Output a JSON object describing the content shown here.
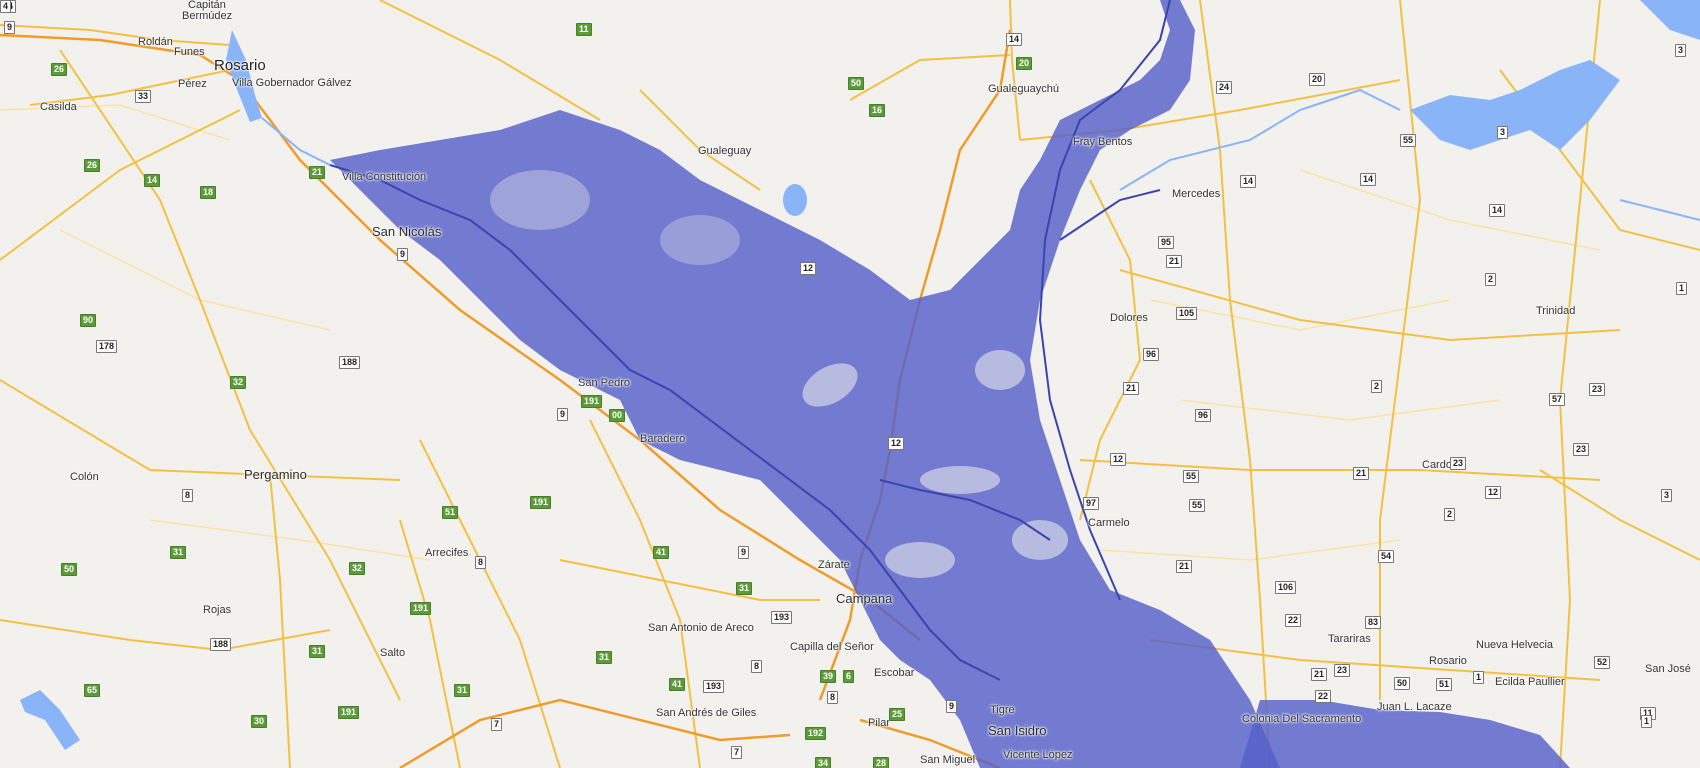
{
  "map": {
    "colors": {
      "land": "#f2f1ee",
      "road_major": "#f4c043",
      "road_highway": "#f09c2a",
      "water": "#8ab4f8",
      "flood_overlay": "#5560c8",
      "river_line": "#3a44b0"
    },
    "cities": [
      {
        "name": "Capitán",
        "size": "small"
      },
      {
        "name": "Bermúdez",
        "size": "small"
      },
      {
        "name": "Roldán",
        "size": "small"
      },
      {
        "name": "Funes",
        "size": "small"
      },
      {
        "name": "Rosario",
        "size": "big"
      },
      {
        "name": "Pérez",
        "size": "small"
      },
      {
        "name": "Villa Gobernador Gálvez",
        "size": "small"
      },
      {
        "name": "Casilda",
        "size": "small"
      },
      {
        "name": "Villa Constitución",
        "size": "small"
      },
      {
        "name": "San Nicolás",
        "size": "med"
      },
      {
        "name": "San Pedro",
        "size": "small"
      },
      {
        "name": "Baradero",
        "size": "small"
      },
      {
        "name": "Colón",
        "size": "small"
      },
      {
        "name": "Pergamino",
        "size": "med"
      },
      {
        "name": "Arrecifes",
        "size": "small"
      },
      {
        "name": "Rojas",
        "size": "small"
      },
      {
        "name": "Salto",
        "size": "small"
      },
      {
        "name": "San Antonio de Areco",
        "size": "small"
      },
      {
        "name": "Zárate",
        "size": "small"
      },
      {
        "name": "Campana",
        "size": "med"
      },
      {
        "name": "Capilla del Señor",
        "size": "small"
      },
      {
        "name": "Escobar",
        "size": "small"
      },
      {
        "name": "San Andrés de Giles",
        "size": "small"
      },
      {
        "name": "Pilar",
        "size": "small"
      },
      {
        "name": "Tigre",
        "size": "small"
      },
      {
        "name": "San Isidro",
        "size": "med"
      },
      {
        "name": "San Miguel",
        "size": "small"
      },
      {
        "name": "Vicente López",
        "size": "small"
      },
      {
        "name": "Gualeguay",
        "size": "small"
      },
      {
        "name": "Gualeguaychú",
        "size": "small"
      },
      {
        "name": "Fray Bentos",
        "size": "small"
      },
      {
        "name": "Mercedes",
        "size": "small"
      },
      {
        "name": "Dolores",
        "size": "small"
      },
      {
        "name": "Carmelo",
        "size": "small"
      },
      {
        "name": "Cardona",
        "size": "small"
      },
      {
        "name": "Trinidad",
        "size": "small"
      },
      {
        "name": "Tarariras",
        "size": "small"
      },
      {
        "name": "Rosario",
        "size": "small"
      },
      {
        "name": "Nueva Helvecia",
        "size": "small"
      },
      {
        "name": "Colonia Del Sacramento",
        "size": "small"
      },
      {
        "name": "Juan L. Lacaze",
        "size": "small"
      },
      {
        "name": "Ecilda Paullier",
        "size": "small"
      },
      {
        "name": "San José",
        "size": "small"
      }
    ],
    "shields": [
      {
        "label": "9",
        "type": "white"
      },
      {
        "label": "11",
        "type": "green"
      },
      {
        "label": "26",
        "type": "green"
      },
      {
        "label": "33",
        "type": "white"
      },
      {
        "label": "26",
        "type": "green"
      },
      {
        "label": "14",
        "type": "green"
      },
      {
        "label": "18",
        "type": "green"
      },
      {
        "label": "21",
        "type": "green"
      },
      {
        "label": "9",
        "type": "white"
      },
      {
        "label": "90",
        "type": "green"
      },
      {
        "label": "178",
        "type": "white"
      },
      {
        "label": "188",
        "type": "white"
      },
      {
        "label": "32",
        "type": "green"
      },
      {
        "label": "191",
        "type": "green"
      },
      {
        "label": "9",
        "type": "white"
      },
      {
        "label": "00",
        "type": "green"
      },
      {
        "label": "8",
        "type": "white"
      },
      {
        "label": "51",
        "type": "green"
      },
      {
        "label": "191",
        "type": "green"
      },
      {
        "label": "50",
        "type": "green"
      },
      {
        "label": "31",
        "type": "green"
      },
      {
        "label": "32",
        "type": "green"
      },
      {
        "label": "8",
        "type": "white"
      },
      {
        "label": "41",
        "type": "green"
      },
      {
        "label": "9",
        "type": "white"
      },
      {
        "label": "31",
        "type": "green"
      },
      {
        "label": "193",
        "type": "white"
      },
      {
        "label": "191",
        "type": "green"
      },
      {
        "label": "188",
        "type": "white"
      },
      {
        "label": "31",
        "type": "green"
      },
      {
        "label": "65",
        "type": "green"
      },
      {
        "label": "30",
        "type": "green"
      },
      {
        "label": "31",
        "type": "green"
      },
      {
        "label": "191",
        "type": "green"
      },
      {
        "label": "7",
        "type": "white"
      },
      {
        "label": "31",
        "type": "green"
      },
      {
        "label": "8",
        "type": "white"
      },
      {
        "label": "41",
        "type": "green"
      },
      {
        "label": "193",
        "type": "white"
      },
      {
        "label": "39",
        "type": "green"
      },
      {
        "label": "6",
        "type": "green"
      },
      {
        "label": "8",
        "type": "white"
      },
      {
        "label": "25",
        "type": "green"
      },
      {
        "label": "9",
        "type": "white"
      },
      {
        "label": "7",
        "type": "white"
      },
      {
        "label": "192",
        "type": "green"
      },
      {
        "label": "34",
        "type": "green"
      },
      {
        "label": "28",
        "type": "green"
      },
      {
        "label": "14",
        "type": "white"
      },
      {
        "label": "20",
        "type": "green"
      },
      {
        "label": "50",
        "type": "green"
      },
      {
        "label": "16",
        "type": "green"
      },
      {
        "label": "12",
        "type": "white"
      },
      {
        "label": "12",
        "type": "white"
      },
      {
        "label": "24",
        "type": "white"
      },
      {
        "label": "20",
        "type": "white"
      },
      {
        "label": "55",
        "type": "white"
      },
      {
        "label": "3",
        "type": "white"
      },
      {
        "label": "14",
        "type": "white"
      },
      {
        "label": "14",
        "type": "white"
      },
      {
        "label": "14",
        "type": "white"
      },
      {
        "label": "95",
        "type": "white"
      },
      {
        "label": "21",
        "type": "white"
      },
      {
        "label": "2",
        "type": "white"
      },
      {
        "label": "105",
        "type": "white"
      },
      {
        "label": "96",
        "type": "white"
      },
      {
        "label": "21",
        "type": "white"
      },
      {
        "label": "96",
        "type": "white"
      },
      {
        "label": "12",
        "type": "white"
      },
      {
        "label": "55",
        "type": "white"
      },
      {
        "label": "97",
        "type": "white"
      },
      {
        "label": "21",
        "type": "white"
      },
      {
        "label": "55",
        "type": "white"
      },
      {
        "label": "2",
        "type": "white"
      },
      {
        "label": "57",
        "type": "white"
      },
      {
        "label": "23",
        "type": "white"
      },
      {
        "label": "23",
        "type": "white"
      },
      {
        "label": "23",
        "type": "white"
      },
      {
        "label": "12",
        "type": "white"
      },
      {
        "label": "3",
        "type": "white"
      },
      {
        "label": "2",
        "type": "white"
      },
      {
        "label": "54",
        "type": "white"
      },
      {
        "label": "21",
        "type": "white"
      },
      {
        "label": "106",
        "type": "white"
      },
      {
        "label": "22",
        "type": "white"
      },
      {
        "label": "83",
        "type": "white"
      },
      {
        "label": "21",
        "type": "white"
      },
      {
        "label": "23",
        "type": "white"
      },
      {
        "label": "50",
        "type": "white"
      },
      {
        "label": "22",
        "type": "white"
      },
      {
        "label": "1",
        "type": "white"
      },
      {
        "label": "51",
        "type": "white"
      },
      {
        "label": "52",
        "type": "white"
      },
      {
        "label": "11",
        "type": "white"
      },
      {
        "label": "1",
        "type": "white"
      },
      {
        "label": "1",
        "type": "white"
      },
      {
        "label": "3",
        "type": "white"
      },
      {
        "label": "14",
        "type": "white"
      },
      {
        "label": "4",
        "type": "white"
      }
    ]
  }
}
